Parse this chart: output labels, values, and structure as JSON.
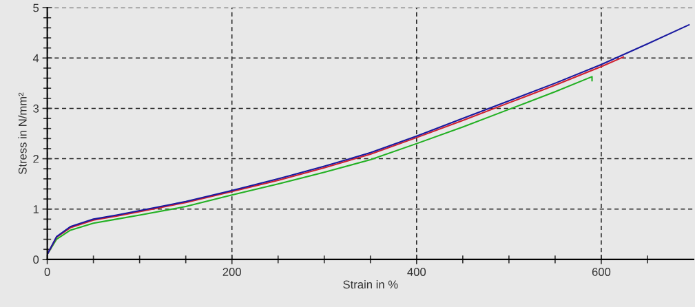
{
  "chart_data": {
    "type": "line",
    "xlabel": "Strain in %",
    "ylabel": "Stress in N/mm²",
    "xlim": [
      0,
      700
    ],
    "ylim": [
      0,
      5
    ],
    "xticks": [
      0,
      {
        "value": 50,
        "label": null
      },
      {
        "value": 100,
        "label": null
      },
      {
        "value": 150,
        "label": null
      },
      200,
      {
        "value": 250,
        "label": null
      },
      {
        "value": 300,
        "label": null
      },
      {
        "value": 350,
        "label": null
      },
      400,
      {
        "value": 450,
        "label": null
      },
      {
        "value": 500,
        "label": null
      },
      {
        "value": 550,
        "label": null
      },
      600,
      {
        "value": 650,
        "label": null
      }
    ],
    "yticks": [
      0,
      {
        "value": 0.2,
        "label": null
      },
      {
        "value": 0.4,
        "label": null
      },
      {
        "value": 0.6,
        "label": null
      },
      {
        "value": 0.8,
        "label": null
      },
      1,
      {
        "value": 1.2,
        "label": null
      },
      {
        "value": 1.4,
        "label": null
      },
      {
        "value": 1.6,
        "label": null
      },
      {
        "value": 1.8,
        "label": null
      },
      2,
      {
        "value": 2.2,
        "label": null
      },
      {
        "value": 2.4,
        "label": null
      },
      {
        "value": 2.6,
        "label": null
      },
      {
        "value": 2.8,
        "label": null
      },
      3,
      {
        "value": 3.2,
        "label": null
      },
      {
        "value": 3.4,
        "label": null
      },
      {
        "value": 3.6,
        "label": null
      },
      {
        "value": 3.8,
        "label": null
      },
      4,
      {
        "value": 4.2,
        "label": null
      },
      {
        "value": 4.4,
        "label": null
      },
      {
        "value": 4.6,
        "label": null
      },
      {
        "value": 4.8,
        "label": null
      },
      5
    ],
    "grid": true,
    "line_style": "solid",
    "marker": "none",
    "series": [
      {
        "color": "#22b022",
        "x": [
          0,
          10,
          25,
          50,
          75,
          100,
          150,
          200,
          250,
          300,
          350,
          400,
          450,
          500,
          550,
          590,
          590
        ],
        "values": [
          0.1,
          0.4,
          0.58,
          0.72,
          0.8,
          0.88,
          1.05,
          1.28,
          1.5,
          1.73,
          1.98,
          2.3,
          2.63,
          2.98,
          3.33,
          3.63,
          3.55
        ]
      },
      {
        "color": "#d02030",
        "x": [
          0,
          10,
          25,
          50,
          75,
          100,
          150,
          200,
          250,
          300,
          350,
          400,
          450,
          500,
          550,
          600,
          624
        ],
        "values": [
          0.1,
          0.44,
          0.63,
          0.78,
          0.86,
          0.95,
          1.13,
          1.35,
          1.57,
          1.82,
          2.09,
          2.42,
          2.76,
          3.11,
          3.46,
          3.83,
          4.02
        ]
      },
      {
        "color": "#1a1aa0",
        "x": [
          0,
          10,
          25,
          50,
          75,
          100,
          150,
          200,
          250,
          300,
          350,
          400,
          450,
          500,
          550,
          600,
          650,
          695
        ],
        "values": [
          0.1,
          0.45,
          0.65,
          0.8,
          0.88,
          0.97,
          1.15,
          1.37,
          1.6,
          1.85,
          2.12,
          2.45,
          2.8,
          3.15,
          3.5,
          3.87,
          4.28,
          4.66
        ]
      }
    ]
  }
}
